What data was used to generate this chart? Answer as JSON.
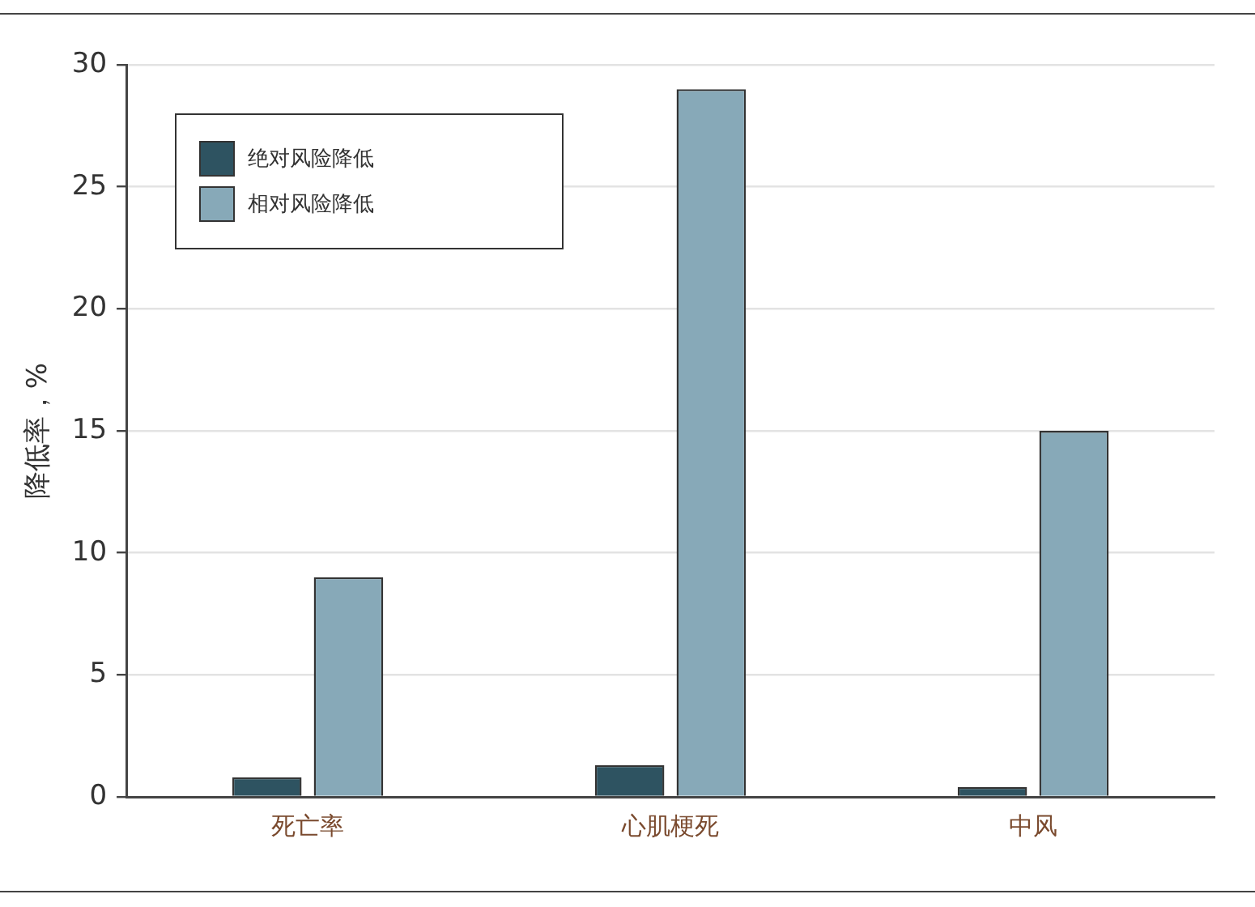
{
  "chart_data": {
    "type": "bar",
    "ylabel": "降低率，%",
    "categories": [
      "死亡率",
      "心肌梗死",
      "中风"
    ],
    "series": [
      {
        "name": "绝对风险降低",
        "color": "#2e5361",
        "values": [
          0.8,
          1.3,
          0.4
        ]
      },
      {
        "name": "相对风险降低",
        "color": "#87a9b8",
        "values": [
          9,
          29,
          15
        ]
      }
    ],
    "ylim": [
      0,
      30
    ],
    "yticks": [
      0,
      5,
      10,
      15,
      20,
      25,
      30
    ],
    "grid": "y",
    "legend": "top left"
  }
}
